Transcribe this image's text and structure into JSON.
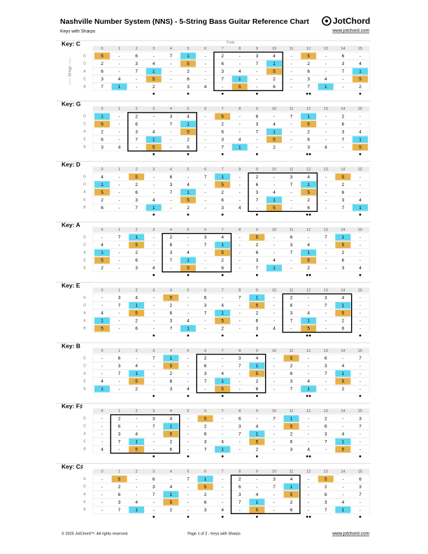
{
  "header": {
    "title": "Nashville Number System (NNS) - 5-String Bass Guitar Reference Chart",
    "subtitle": "Keys with Sharps",
    "logo": "JotChord",
    "url": "www.jotchord.com"
  },
  "axis_labels": {
    "frets": "Frets",
    "strings": "Strings"
  },
  "frets": [
    0,
    1,
    2,
    3,
    4,
    5,
    6,
    7,
    8,
    9,
    10,
    11,
    12,
    13,
    14,
    15
  ],
  "strings": [
    "G",
    "D",
    "A",
    "E",
    "B"
  ],
  "highlight": {
    "1": "#5ed6ef",
    "5": "#e8b24a"
  },
  "keys": [
    {
      "label": "Key: C",
      "rows": [
        [
          "5",
          "-",
          "6",
          "-",
          "7",
          "1",
          "-",
          "2",
          "-",
          "3",
          "4",
          "-",
          "5",
          "-",
          "6",
          "-"
        ],
        [
          "2",
          "-",
          "3",
          "4",
          "-",
          "5",
          "-",
          "6",
          "-",
          "7",
          "1",
          "-",
          "2",
          "-",
          "3",
          "4"
        ],
        [
          "6",
          "-",
          "7",
          "1",
          "-",
          "2",
          "-",
          "3",
          "4",
          "-",
          "5",
          "-",
          "6",
          "-",
          "7",
          "1"
        ],
        [
          "3",
          "4",
          "-",
          "5",
          "-",
          "6",
          "-",
          "7",
          "1",
          "-",
          "2",
          "-",
          "3",
          "4",
          "-",
          "5"
        ],
        [
          "7",
          "1",
          "-",
          "2",
          "-",
          "3",
          "4",
          "-",
          "5",
          "-",
          "6",
          "-",
          "7",
          "1",
          "-",
          "2"
        ]
      ]
    },
    {
      "label": "Key: G",
      "rows": [
        [
          "1",
          "-",
          "2",
          "-",
          "3",
          "4",
          "-",
          "5",
          "-",
          "6",
          "-",
          "7",
          "1",
          "-",
          "2",
          "-"
        ],
        [
          "5",
          "-",
          "6",
          "-",
          "7",
          "1",
          "-",
          "2",
          "-",
          "3",
          "4",
          "-",
          "5",
          "-",
          "6",
          "-"
        ],
        [
          "2",
          "-",
          "3",
          "4",
          "-",
          "5",
          "-",
          "6",
          "-",
          "7",
          "1",
          "-",
          "2",
          "-",
          "3",
          "4"
        ],
        [
          "6",
          "-",
          "7",
          "1",
          "-",
          "2",
          "-",
          "3",
          "4",
          "-",
          "5",
          "-",
          "6",
          "-",
          "7",
          "1"
        ],
        [
          "3",
          "4",
          "-",
          "5",
          "-",
          "6",
          "-",
          "7",
          "1",
          "-",
          "2",
          "-",
          "3",
          "4",
          "-",
          "5"
        ]
      ]
    },
    {
      "label": "Key: D",
      "rows": [
        [
          "4",
          "-",
          "5",
          "-",
          "6",
          "-",
          "7",
          "1",
          "-",
          "2",
          "-",
          "3",
          "4",
          "-",
          "5",
          "-"
        ],
        [
          "1",
          "-",
          "2",
          "-",
          "3",
          "4",
          "-",
          "5",
          "-",
          "6",
          "-",
          "7",
          "1",
          "-",
          "2",
          "-"
        ],
        [
          "5",
          "-",
          "6",
          "-",
          "7",
          "1",
          "-",
          "2",
          "-",
          "3",
          "4",
          "-",
          "5",
          "-",
          "6",
          "-"
        ],
        [
          "2",
          "-",
          "3",
          "4",
          "-",
          "5",
          "-",
          "6",
          "-",
          "7",
          "1",
          "-",
          "2",
          "-",
          "3",
          "4"
        ],
        [
          "6",
          "-",
          "7",
          "1",
          "-",
          "2",
          "-",
          "3",
          "4",
          "-",
          "5",
          "-",
          "6",
          "-",
          "7",
          "1"
        ]
      ]
    },
    {
      "label": "Key: A",
      "rows": [
        [
          "-",
          "7",
          "1",
          "-",
          "2",
          "-",
          "3",
          "4",
          "-",
          "5",
          "-",
          "6",
          "-",
          "7",
          "1",
          "-"
        ],
        [
          "4",
          "-",
          "5",
          "-",
          "6",
          "-",
          "7",
          "1",
          "-",
          "2",
          "-",
          "3",
          "4",
          "-",
          "5",
          "-"
        ],
        [
          "1",
          "-",
          "2",
          "-",
          "3",
          "4",
          "-",
          "5",
          "-",
          "6",
          "-",
          "7",
          "1",
          "-",
          "2",
          "-"
        ],
        [
          "5",
          "-",
          "6",
          "-",
          "7",
          "1",
          "-",
          "2",
          "-",
          "3",
          "4",
          "-",
          "5",
          "-",
          "6",
          "-"
        ],
        [
          "2",
          "-",
          "3",
          "4",
          "-",
          "5",
          "-",
          "6",
          "-",
          "7",
          "1",
          "-",
          "2",
          "-",
          "3",
          "4"
        ]
      ]
    },
    {
      "label": "Key: E",
      "rows": [
        [
          "-",
          "3",
          "4",
          "-",
          "5",
          "-",
          "6",
          "-",
          "7",
          "1",
          "-",
          "2",
          "-",
          "3",
          "4",
          "-"
        ],
        [
          "-",
          "7",
          "1",
          "-",
          "2",
          "-",
          "3",
          "4",
          "-",
          "5",
          "-",
          "6",
          "-",
          "7",
          "1",
          "-"
        ],
        [
          "4",
          "-",
          "5",
          "-",
          "6",
          "-",
          "7",
          "1",
          "-",
          "2",
          "-",
          "3",
          "4",
          "-",
          "5",
          "-"
        ],
        [
          "1",
          "-",
          "2",
          "-",
          "3",
          "4",
          "-",
          "5",
          "-",
          "6",
          "-",
          "7",
          "1",
          "-",
          "2",
          "-"
        ],
        [
          "5",
          "-",
          "6",
          "-",
          "7",
          "1",
          "-",
          "2",
          "-",
          "3",
          "4",
          "-",
          "5",
          "-",
          "6",
          "-"
        ]
      ]
    },
    {
      "label": "Key: B",
      "rows": [
        [
          "-",
          "6",
          "-",
          "7",
          "1",
          "-",
          "2",
          "-",
          "3",
          "4",
          "-",
          "5",
          "-",
          "6",
          "-",
          "7"
        ],
        [
          "-",
          "3",
          "4",
          "-",
          "5",
          "-",
          "6",
          "-",
          "7",
          "1",
          "-",
          "2",
          "-",
          "3",
          "4",
          "-"
        ],
        [
          "-",
          "7",
          "1",
          "-",
          "2",
          "-",
          "3",
          "4",
          "-",
          "5",
          "-",
          "6",
          "-",
          "7",
          "1",
          "-"
        ],
        [
          "4",
          "-",
          "5",
          "-",
          "6",
          "-",
          "7",
          "1",
          "-",
          "2",
          "-",
          "3",
          "4",
          "-",
          "5",
          "-"
        ],
        [
          "1",
          "-",
          "2",
          "-",
          "3",
          "4",
          "-",
          "5",
          "-",
          "6",
          "-",
          "7",
          "1",
          "-",
          "2",
          "-"
        ]
      ]
    },
    {
      "label": "Key: F♯",
      "rows": [
        [
          "-",
          "2",
          "-",
          "3",
          "4",
          "-",
          "5",
          "-",
          "6",
          "-",
          "7",
          "1",
          "-",
          "2",
          "-",
          "3"
        ],
        [
          "-",
          "6",
          "-",
          "7",
          "1",
          "-",
          "2",
          "-",
          "3",
          "4",
          "-",
          "5",
          "-",
          "6",
          "-",
          "7"
        ],
        [
          "-",
          "3",
          "4",
          "-",
          "5",
          "-",
          "6",
          "-",
          "7",
          "1",
          "-",
          "2",
          "-",
          "3",
          "4",
          "-"
        ],
        [
          "-",
          "7",
          "1",
          "-",
          "2",
          "-",
          "3",
          "4",
          "-",
          "5",
          "-",
          "6",
          "-",
          "7",
          "1",
          "-"
        ],
        [
          "4",
          "-",
          "5",
          "-",
          "6",
          "-",
          "7",
          "1",
          "-",
          "2",
          "-",
          "3",
          "4",
          "-",
          "5",
          "-"
        ]
      ]
    },
    {
      "label": "Key: C♯",
      "rows": [
        [
          "-",
          "5",
          "-",
          "6",
          "-",
          "7",
          "1",
          "-",
          "2",
          "-",
          "3",
          "4",
          "-",
          "5",
          "-",
          "6"
        ],
        [
          "-",
          "2",
          "-",
          "3",
          "4",
          "-",
          "5",
          "-",
          "6",
          "-",
          "7",
          "1",
          "-",
          "2",
          "-",
          "3"
        ],
        [
          "-",
          "6",
          "-",
          "7",
          "1",
          "-",
          "2",
          "-",
          "3",
          "4",
          "-",
          "5",
          "-",
          "6",
          "-",
          "7"
        ],
        [
          "-",
          "3",
          "4",
          "-",
          "5",
          "-",
          "6",
          "-",
          "7",
          "1",
          "-",
          "2",
          "-",
          "3",
          "4",
          "-"
        ],
        [
          "-",
          "7",
          "1",
          "-",
          "2",
          "-",
          "3",
          "4",
          "-",
          "5",
          "-",
          "6",
          "-",
          "7",
          "1",
          "-"
        ]
      ]
    }
  ],
  "footer": {
    "copyright": "© 2025 JotChord™. All rights reserved.",
    "page": "Page 1 of 2 - Keys with Sharps",
    "url": "www.jotchord.com"
  }
}
